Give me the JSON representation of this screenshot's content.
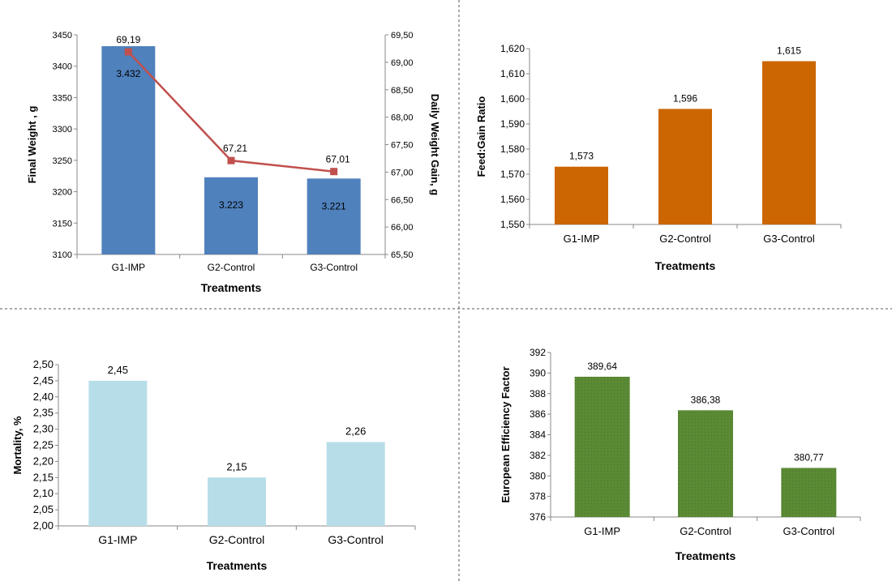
{
  "colors": {
    "bar_blue": "#4f81bd",
    "line_red": "#c0504d",
    "bar_orange": "#cc6600",
    "bar_lightblue": "#b7dee8",
    "bar_green": "#5b8a35",
    "divider": "#555555"
  },
  "chart_data": [
    {
      "type": "bar",
      "secondary_type": "line",
      "categories": [
        "G1-IMP",
        "G2-Control",
        "G3-Control"
      ],
      "series": [
        {
          "name": "",
          "axis": "left",
          "values": [
            3432,
            3223,
            3221
          ],
          "labels": [
            "3.432",
            "3.223",
            "3.221"
          ]
        },
        {
          "name": "",
          "axis": "right",
          "values": [
            69.19,
            67.21,
            67.01
          ],
          "labels": [
            "69,19",
            "67,21",
            "67,01"
          ]
        }
      ],
      "xlabel": "Treatments",
      "ylabel": "Final Weight , g",
      "y2label": "Daily Weight  Gain, g",
      "ylim": [
        3100,
        3450
      ],
      "yticks": [
        "3100",
        "3150",
        "3200",
        "3250",
        "3300",
        "3350",
        "3400",
        "3450"
      ],
      "y2lim": [
        65.5,
        69.5
      ],
      "y2ticks": [
        "65,50",
        "66,00",
        "66,50",
        "67,00",
        "67,50",
        "68,00",
        "68,50",
        "69,00",
        "69,50"
      ],
      "grid": false,
      "legend": "none"
    },
    {
      "type": "bar",
      "categories": [
        "G1-IMP",
        "G2-Control",
        "G3-Control"
      ],
      "values": [
        1.573,
        1.596,
        1.615
      ],
      "labels": [
        "1,573",
        "1,596",
        "1,615"
      ],
      "xlabel": "Treatments",
      "ylabel": "Feed:Gain Ratio",
      "ylim": [
        1.55,
        1.62
      ],
      "yticks": [
        "1,550",
        "1,560",
        "1,570",
        "1,580",
        "1,590",
        "1,600",
        "1,610",
        "1,620"
      ],
      "grid": false,
      "legend": "none"
    },
    {
      "type": "bar",
      "categories": [
        "G1-IMP",
        "G2-Control",
        "G3-Control"
      ],
      "values": [
        2.45,
        2.15,
        2.26
      ],
      "labels": [
        "2,45",
        "2,15",
        "2,26"
      ],
      "xlabel": "Treatments",
      "ylabel": "Mortality, %",
      "ylim": [
        2.0,
        2.5
      ],
      "yticks": [
        "2,00",
        "2,05",
        "2,10",
        "2,15",
        "2,20",
        "2,25",
        "2,30",
        "2,35",
        "2,40",
        "2,45",
        "2,50"
      ],
      "grid": false,
      "legend": "none"
    },
    {
      "type": "bar",
      "categories": [
        "G1-IMP",
        "G2-Control",
        "G3-Control"
      ],
      "values": [
        389.64,
        386.38,
        380.77
      ],
      "labels": [
        "389,64",
        "386,38",
        "380,77"
      ],
      "xlabel": "Treatments",
      "ylabel": "European Efficiency Factor",
      "ylim": [
        376,
        392
      ],
      "yticks": [
        "376",
        "378",
        "380",
        "382",
        "384",
        "386",
        "388",
        "390",
        "392"
      ],
      "grid": false,
      "legend": "none"
    }
  ]
}
